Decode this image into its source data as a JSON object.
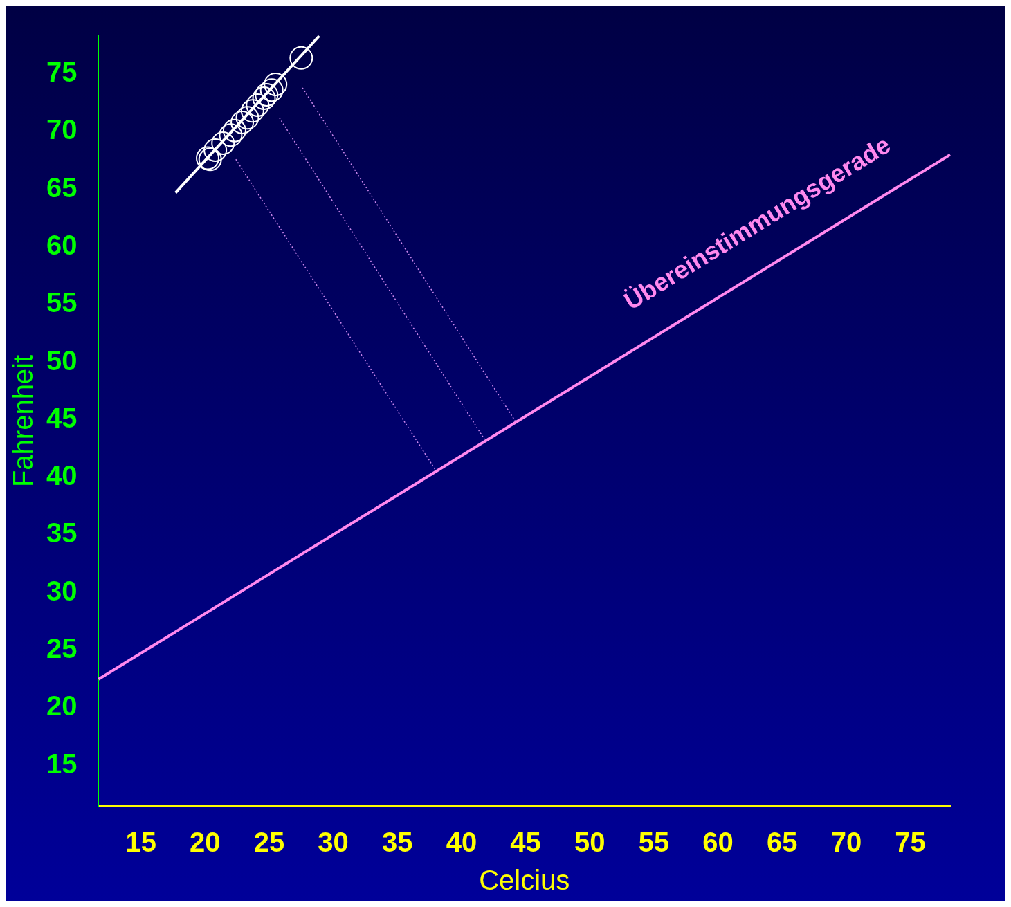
{
  "chart_data": {
    "type": "scatter",
    "xlabel": "Celcius",
    "ylabel": "Fahrenheit",
    "xlim": [
      11.7,
      78.1
    ],
    "xticks": [
      15,
      20,
      25,
      30,
      35,
      40,
      45,
      50,
      55,
      60,
      65,
      70,
      75
    ],
    "ylim": [
      11.5,
      78.3
    ],
    "yticks": [
      15,
      20,
      25,
      30,
      35,
      40,
      45,
      50,
      55,
      60,
      65,
      70,
      75
    ],
    "grid": false,
    "legend": false,
    "series": [
      {
        "type": "line",
        "color": "#ff88ee",
        "line_style": "solid",
        "marker": "none",
        "x": [
          11.7,
          78.1
        ],
        "values": [
          22.5,
          68.0
        ]
      },
      {
        "type": "line",
        "color": "#ffffff",
        "line_style": "solid",
        "marker": "none",
        "x": [
          17.7,
          28.9
        ],
        "values": [
          64.7,
          78.3
        ]
      },
      {
        "type": "line",
        "color": "#cc88ee",
        "line_style": "dotted",
        "marker": "none",
        "x": [
          22.4,
          38.0
        ],
        "values": [
          67.6,
          40.6
        ]
      },
      {
        "type": "line",
        "color": "#cc88ee",
        "line_style": "dotted",
        "marker": "none",
        "x": [
          25.8,
          41.8
        ],
        "values": [
          71.2,
          43.3
        ]
      },
      {
        "type": "line",
        "color": "#cc88ee",
        "line_style": "dotted",
        "marker": "none",
        "x": [
          27.6,
          44.3
        ],
        "values": [
          73.8,
          44.7
        ]
      },
      {
        "type": "scatter",
        "color": "#ffffff",
        "marker": "circle",
        "x": [
          20.4,
          20.2,
          20.8,
          21.4,
          22.0,
          22.3,
          22.9,
          23.3,
          23.7,
          24.1,
          24.6,
          24.8,
          25.2,
          25.5,
          27.5
        ],
        "values": [
          67.6,
          67.7,
          68.4,
          69.0,
          69.7,
          70.1,
          70.8,
          71.2,
          71.8,
          72.3,
          72.9,
          73.2,
          73.6,
          74.1,
          76.4
        ]
      }
    ],
    "annotations": [
      "Übereinstimmungsgerade"
    ]
  }
}
